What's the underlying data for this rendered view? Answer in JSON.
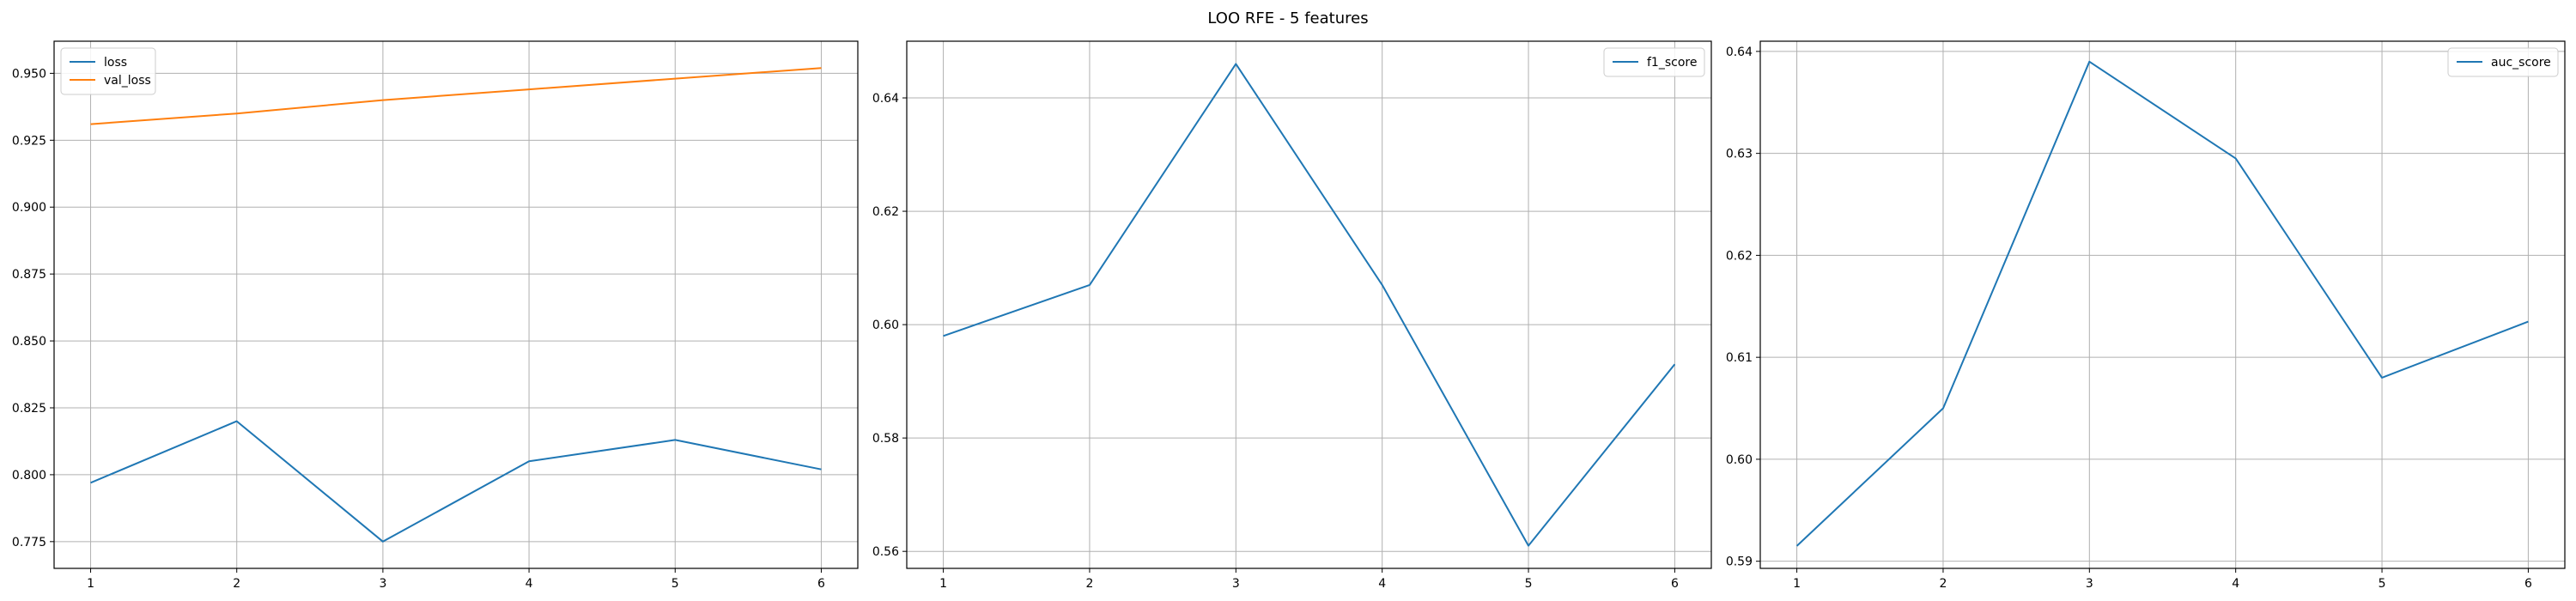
{
  "figure": {
    "suptitle": "LOO RFE - 5 features"
  },
  "chart_data": [
    {
      "type": "line",
      "x": [
        1,
        2,
        3,
        4,
        5,
        6
      ],
      "xlim": [
        0.75,
        6.25
      ],
      "ylim": [
        0.765,
        0.962
      ],
      "xticks": [
        "1",
        "2",
        "3",
        "4",
        "5",
        "6"
      ],
      "yticks": [
        0.775,
        0.8,
        0.825,
        0.85,
        0.875,
        0.9,
        0.925,
        0.95
      ],
      "ytick_labels": [
        "0.775",
        "0.800",
        "0.825",
        "0.850",
        "0.875",
        "0.900",
        "0.925",
        "0.950"
      ],
      "grid": true,
      "legend_position": "upper left",
      "series": [
        {
          "name": "loss",
          "color": "#1f77b4",
          "values": [
            0.797,
            0.82,
            0.775,
            0.805,
            0.813,
            0.802
          ]
        },
        {
          "name": "val_loss",
          "color": "#ff7f0e",
          "values": [
            0.931,
            0.935,
            0.94,
            0.944,
            0.948,
            0.952
          ]
        }
      ]
    },
    {
      "type": "line",
      "x": [
        1,
        2,
        3,
        4,
        5,
        6
      ],
      "xlim": [
        0.75,
        6.25
      ],
      "ylim": [
        0.557,
        0.65
      ],
      "xticks": [
        "1",
        "2",
        "3",
        "4",
        "5",
        "6"
      ],
      "yticks": [
        0.56,
        0.58,
        0.6,
        0.62,
        0.64
      ],
      "ytick_labels": [
        "0.56",
        "0.58",
        "0.60",
        "0.62",
        "0.64"
      ],
      "grid": true,
      "legend_position": "upper right",
      "series": [
        {
          "name": "f1_score",
          "color": "#1f77b4",
          "values": [
            0.598,
            0.607,
            0.646,
            0.607,
            0.561,
            0.593
          ]
        }
      ]
    },
    {
      "type": "line",
      "x": [
        1,
        2,
        3,
        4,
        5,
        6
      ],
      "xlim": [
        0.75,
        6.25
      ],
      "ylim": [
        0.5893,
        0.641
      ],
      "xticks": [
        "1",
        "2",
        "3",
        "4",
        "5",
        "6"
      ],
      "yticks": [
        0.59,
        0.6,
        0.61,
        0.62,
        0.63,
        0.64
      ],
      "ytick_labels": [
        "0.59",
        "0.60",
        "0.61",
        "0.62",
        "0.63",
        "0.64"
      ],
      "grid": true,
      "legend_position": "upper right",
      "series": [
        {
          "name": "auc_score",
          "color": "#1f77b4",
          "values": [
            0.5915,
            0.605,
            0.639,
            0.6295,
            0.608,
            0.6135
          ]
        }
      ]
    }
  ]
}
